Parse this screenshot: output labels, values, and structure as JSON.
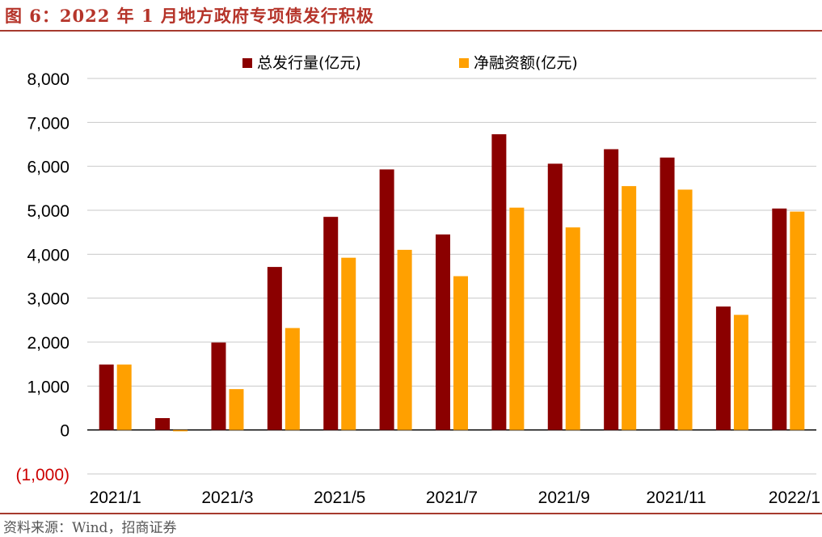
{
  "figure": {
    "title": "图 6：2022 年 1 月地方政府专项债发行积极",
    "source": "资料来源：Wind，招商证券"
  },
  "colors": {
    "series1": "#8b0000",
    "series2": "#ffa000",
    "rule": "#a63a2e",
    "negative_tick": "#cc0000"
  },
  "chart_data": {
    "type": "bar",
    "categories": [
      "2021/1",
      "2021/2",
      "2021/3",
      "2021/4",
      "2021/5",
      "2021/6",
      "2021/7",
      "2021/8",
      "2021/9",
      "2021/10",
      "2021/11",
      "2021/12",
      "2022/1"
    ],
    "x_tick_labels": [
      "2021/1",
      "2021/3",
      "2021/5",
      "2021/7",
      "2021/9",
      "2021/11",
      "2022/1"
    ],
    "y_tick_labels": [
      "8,000",
      "7,000",
      "6,000",
      "5,000",
      "4,000",
      "3,000",
      "2,000",
      "1,000",
      "0",
      "(1,000)"
    ],
    "ylim": [
      -1000,
      8000
    ],
    "grid": true,
    "legend_position": "top",
    "series": [
      {
        "name": "总发行量(亿元)",
        "values": [
          1490,
          270,
          1990,
          3710,
          4850,
          5930,
          4450,
          6730,
          6060,
          6390,
          6200,
          2810,
          5040
        ]
      },
      {
        "name": "净融资额(亿元)",
        "values": [
          1490,
          -30,
          930,
          2320,
          3920,
          4100,
          3500,
          5060,
          4610,
          5550,
          5470,
          2620,
          4970
        ]
      }
    ]
  }
}
